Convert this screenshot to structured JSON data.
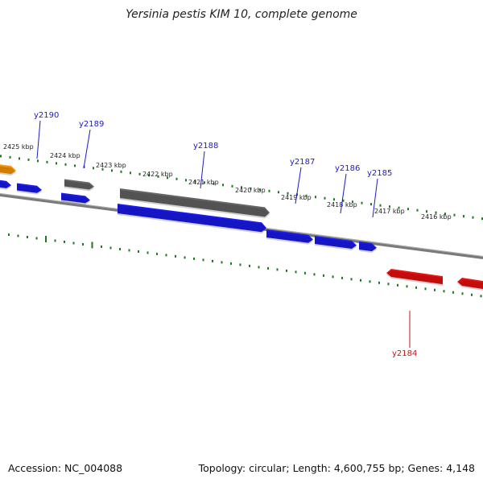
{
  "title": "Yersinia pestis KIM 10, complete genome",
  "footer": {
    "accession": "Accession: NC_004088",
    "stats": "Topology: circular; Length: 4,600,755 bp; Genes: 4,148"
  },
  "colors": {
    "backbone": "#7a7a7a",
    "tick": "#1f7a1f",
    "forward_gene": "#1a1aee",
    "gray_gene": "#666666",
    "reverse_gene": "#ee1111",
    "orange_gene": "#ff9900",
    "label_blue": "#1a1acc",
    "label_red": "#cc1111"
  },
  "ticks": [
    "2425 kbp",
    "2424 kbp",
    "2423 kbp",
    "2422 kbp",
    "2421 kbp",
    "2420 kbp",
    "2419 kbp",
    "2418 kbp",
    "2417 kbp",
    "2416 kbp"
  ],
  "gene_labels": [
    "y2190",
    "y2189",
    "y2188",
    "y2187",
    "y2186",
    "y2185",
    "y2184"
  ]
}
